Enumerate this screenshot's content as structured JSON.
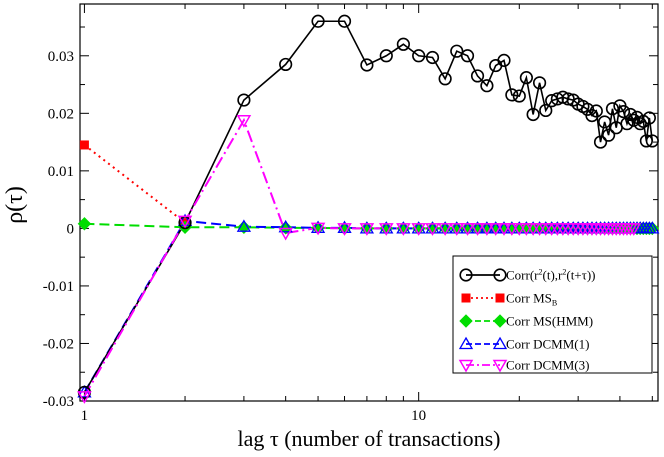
{
  "chart_data": {
    "type": "line",
    "xscale": "log",
    "xlim": [
      0.97,
      52
    ],
    "ylim": [
      -0.03,
      0.039
    ],
    "xticks": [
      {
        "value": 1,
        "label": "1"
      },
      {
        "value": 10,
        "label": "10"
      }
    ],
    "yticks": [
      {
        "value": -0.03,
        "label": "-0.03"
      },
      {
        "value": -0.02,
        "label": "-0.02"
      },
      {
        "value": -0.01,
        "label": "-0.01"
      },
      {
        "value": 0,
        "label": "0"
      },
      {
        "value": 0.01,
        "label": "0.01"
      },
      {
        "value": 0.02,
        "label": "0.02"
      },
      {
        "value": 0.03,
        "label": "0.03"
      }
    ],
    "xlabel": "lag τ (number of transactions)",
    "ylabel": "ρ(τ)",
    "legend_position": "bottom-right",
    "series": [
      {
        "name": "Corr(r²(t),r²(t+τ))",
        "legend_main": "Corr(r",
        "legend_parts": [
          "2",
          "(t),r",
          "2",
          "(t+τ))"
        ],
        "color": "#000000",
        "marker": "circle",
        "line": "solid",
        "x": [
          1,
          2,
          3,
          4,
          5,
          6,
          7,
          8,
          9,
          10,
          11,
          12,
          13,
          14,
          15,
          16,
          17,
          18,
          19,
          20,
          21,
          22,
          23,
          24,
          25,
          26,
          27,
          28,
          29,
          30,
          31,
          32,
          33,
          34,
          35,
          36,
          37,
          38,
          39,
          40,
          41,
          42,
          43,
          44,
          45,
          46,
          47,
          48,
          49,
          50
        ],
        "y": [
          -0.0285,
          0.001,
          0.0223,
          0.0285,
          0.036,
          0.036,
          0.0284,
          0.03,
          0.032,
          0.03,
          0.0297,
          0.026,
          0.0308,
          0.03,
          0.0265,
          0.0248,
          0.0283,
          0.0292,
          0.0232,
          0.023,
          0.0262,
          0.0198,
          0.0253,
          0.0205,
          0.0222,
          0.0225,
          0.0228,
          0.0225,
          0.0223,
          0.0216,
          0.0212,
          0.0207,
          0.0196,
          0.0204,
          0.015,
          0.0185,
          0.0162,
          0.0208,
          0.0175,
          0.0213,
          0.0203,
          0.0182,
          0.0198,
          0.0188,
          0.0193,
          0.0182,
          0.0186,
          0.0152,
          0.0192,
          0.0152
        ]
      },
      {
        "name": "Corr MS_B",
        "legend_main": "Corr MS",
        "legend_sub": "B",
        "color": "#ff0000",
        "marker": "square",
        "line": "dotted",
        "x": [
          1,
          2
        ],
        "y": [
          0.0145,
          0.001
        ]
      },
      {
        "name": "Corr MS(HMM)",
        "legend_main": "Corr MS(HMM)",
        "color": "#00dd00",
        "marker": "diamond",
        "line": "dashed",
        "x": [
          1,
          2,
          3,
          4,
          5,
          6,
          7,
          8,
          9,
          10,
          11,
          12,
          13,
          14,
          15,
          16,
          17,
          18,
          19,
          20,
          21,
          22,
          23,
          24,
          25,
          26,
          27,
          28,
          29,
          30,
          31,
          32,
          33,
          34,
          35,
          36,
          37,
          38,
          39,
          40,
          41,
          42,
          43,
          44,
          45,
          46,
          47,
          48,
          49,
          50
        ],
        "y": [
          0.0008,
          0.0002,
          0.0002,
          0.0001,
          0.0001,
          0,
          0,
          0,
          0,
          0,
          0,
          0,
          0,
          0,
          0,
          0,
          0,
          0,
          0,
          0,
          0,
          0,
          0,
          0,
          0,
          0,
          0,
          0,
          0,
          0,
          0,
          0,
          0,
          0,
          0,
          0,
          0,
          0,
          0,
          0,
          0,
          0,
          0,
          0,
          0,
          0,
          0,
          0,
          0,
          0
        ]
      },
      {
        "name": "Corr DCMM(1)",
        "legend_main": "Corr DCMM(1)",
        "color": "#0000ff",
        "marker": "triangle-up",
        "line": "dashed",
        "x": [
          1,
          2,
          3,
          4,
          5,
          6,
          7,
          8,
          9,
          10,
          11,
          12,
          13,
          14,
          15,
          16,
          17,
          18,
          19,
          20,
          21,
          22,
          23,
          24,
          25,
          26,
          27,
          28,
          29,
          30,
          31,
          32,
          33,
          34,
          35,
          36,
          37,
          38,
          39,
          40,
          41,
          42,
          43,
          44,
          45,
          46,
          47,
          48,
          49,
          50
        ],
        "y": [
          -0.0285,
          0.0013,
          0.0003,
          0.0002,
          0.0001,
          0.0001,
          0,
          0,
          0,
          0,
          0,
          0,
          0,
          0,
          0,
          0,
          0,
          0,
          0,
          0,
          0,
          0,
          0,
          0,
          0,
          0,
          0,
          0,
          0,
          0,
          0,
          0,
          0,
          0,
          0,
          0,
          0,
          0,
          0,
          0,
          0,
          0,
          0,
          0,
          0,
          0,
          0,
          0,
          0,
          0
        ]
      },
      {
        "name": "Corr DCMM(3)",
        "legend_main": "Corr DCMM(3)",
        "color": "#ff00ff",
        "marker": "triangle-down",
        "line": "dashdot",
        "x": [
          1,
          2,
          3,
          4,
          5,
          6,
          7,
          8,
          9,
          10,
          11,
          12,
          13,
          14,
          15,
          16,
          17,
          18,
          19,
          20,
          21,
          22,
          23,
          24,
          25,
          26,
          27,
          28,
          29,
          30,
          31,
          32,
          33,
          34,
          35,
          36,
          37,
          38,
          39,
          40,
          41,
          42,
          43,
          44
        ],
        "y": [
          -0.0292,
          0.0013,
          0.0188,
          -0.0008,
          0.0001,
          0,
          0,
          0,
          0,
          0,
          0,
          0,
          0,
          0,
          0,
          0,
          0,
          0,
          0,
          0,
          0,
          0,
          0,
          0,
          0,
          0,
          0,
          0,
          0,
          0,
          0,
          0,
          0,
          0,
          0,
          0,
          0,
          0,
          0,
          0,
          0,
          0,
          0,
          0
        ]
      }
    ]
  }
}
